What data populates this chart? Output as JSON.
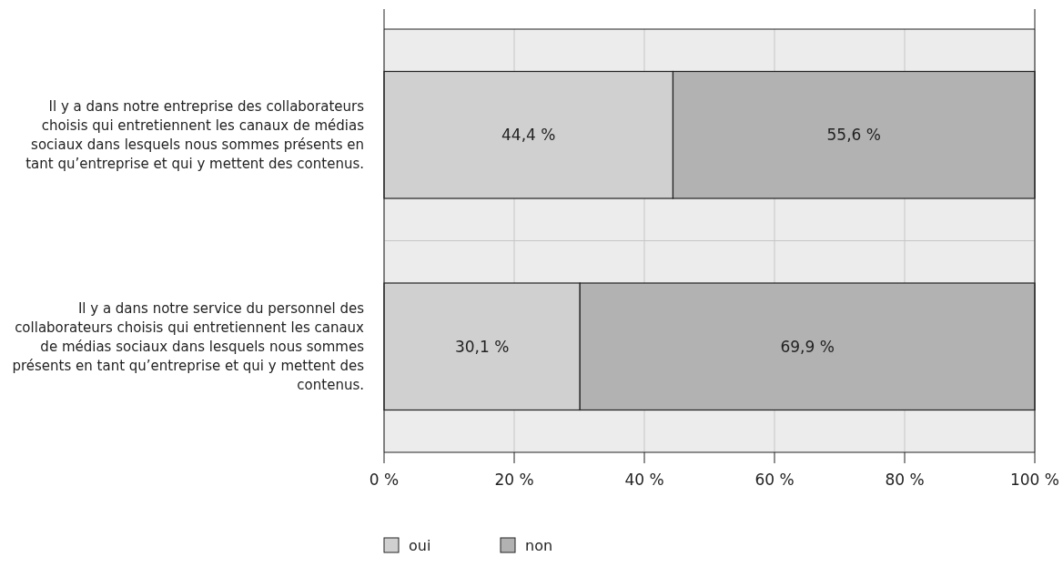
{
  "chart_data": {
    "type": "bar",
    "orientation": "horizontal",
    "stacked": true,
    "categories": [
      "Il y a dans notre entreprise des collaborateurs choisis qui entretiennent les canaux de médias sociaux dans lesquels nous sommes présents en tant qu’entreprise et qui y mettent des contenus.",
      "Il y a dans notre service du personnel des collaborateurs choisis qui entretiennent les canaux de médias sociaux dans lesquels nous sommes présents en tant qu’entreprise et qui y mettent des contenus."
    ],
    "series": [
      {
        "name": "oui",
        "color": "#d0d0d0",
        "values": [
          44.4,
          30.1
        ],
        "value_labels": [
          "44,4 %",
          "30,1 %"
        ]
      },
      {
        "name": "non",
        "color": "#b2b2b2",
        "values": [
          55.6,
          69.9
        ],
        "value_labels": [
          "55,6 %",
          "69,9 %"
        ]
      }
    ],
    "xlim": [
      0,
      100
    ],
    "xticks": [
      {
        "value": 0,
        "label": "0 %"
      },
      {
        "value": 20,
        "label": "20 %"
      },
      {
        "value": 40,
        "label": "40 %"
      },
      {
        "value": 60,
        "label": "60 %"
      },
      {
        "value": 80,
        "label": "80 %"
      },
      {
        "value": 100,
        "label": "100 %"
      }
    ],
    "grid": "x",
    "legend": "bottom"
  }
}
